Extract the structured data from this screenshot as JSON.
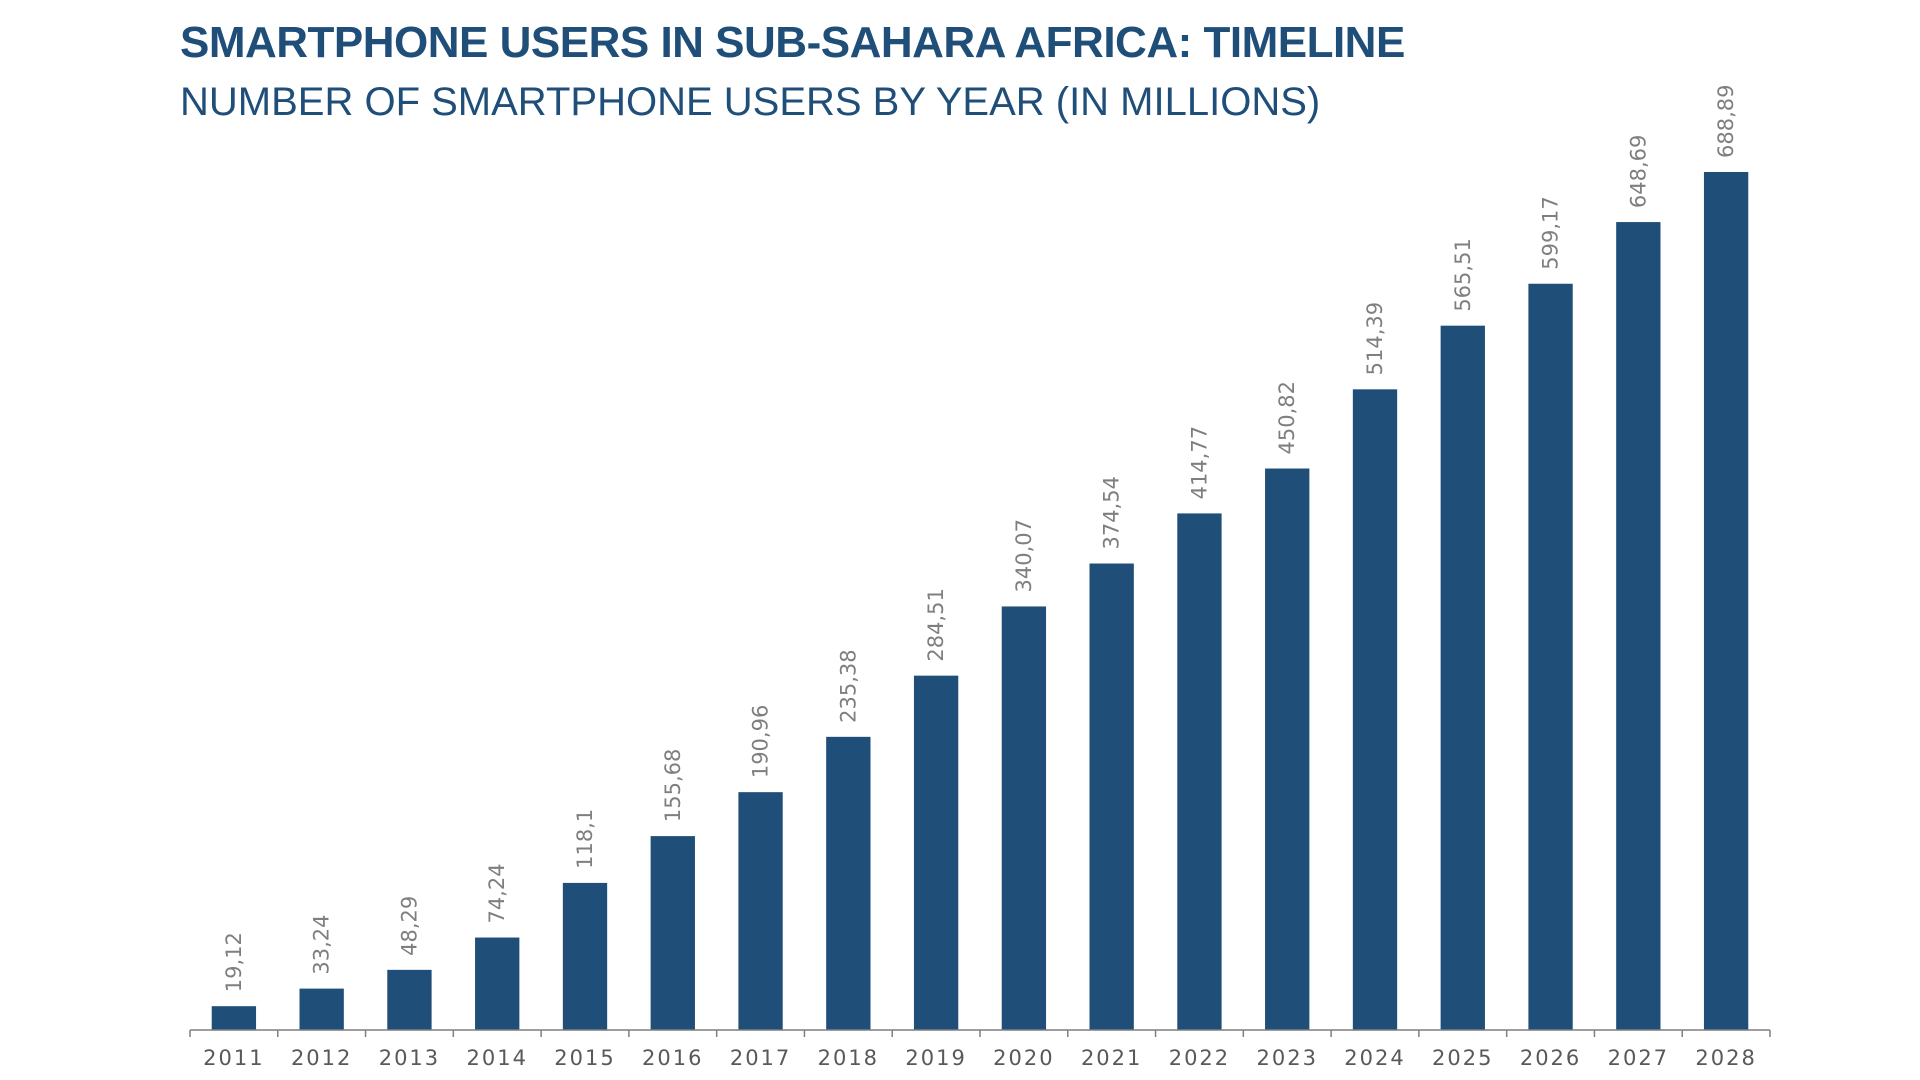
{
  "chart_data": {
    "type": "bar",
    "title": "SMARTPHONE USERS IN SUB-SAHARA AFRICA: TIMELINE",
    "subtitle": "NUMBER OF SMARTPHONE USERS BY YEAR (IN MILLIONS)",
    "categories": [
      "2011",
      "2012",
      "2013",
      "2014",
      "2015",
      "2016",
      "2017",
      "2018",
      "2019",
      "2020",
      "2021",
      "2022",
      "2023",
      "2024",
      "2025",
      "2026",
      "2027",
      "2028"
    ],
    "values": [
      19.12,
      33.24,
      48.29,
      74.24,
      118.1,
      155.68,
      190.96,
      235.38,
      284.51,
      340.07,
      374.54,
      414.77,
      450.82,
      514.39,
      565.51,
      599.17,
      648.69,
      688.89
    ],
    "data_labels": [
      "19,12",
      "33,24",
      "48,29",
      "74,24",
      "118,1",
      "155,68",
      "190,96",
      "235,38",
      "284,51",
      "340,07",
      "374,54",
      "414,77",
      "450,82",
      "514,39",
      "565,51",
      "599,17",
      "648,69",
      "688,89"
    ],
    "xlabel": "",
    "ylabel": "",
    "ylim": [
      0,
      688.89
    ],
    "grid": false,
    "legend": "none",
    "colors": {
      "bar": "#1f4e79",
      "title": "#1f4e79",
      "labels": "#7f7f7f"
    }
  }
}
